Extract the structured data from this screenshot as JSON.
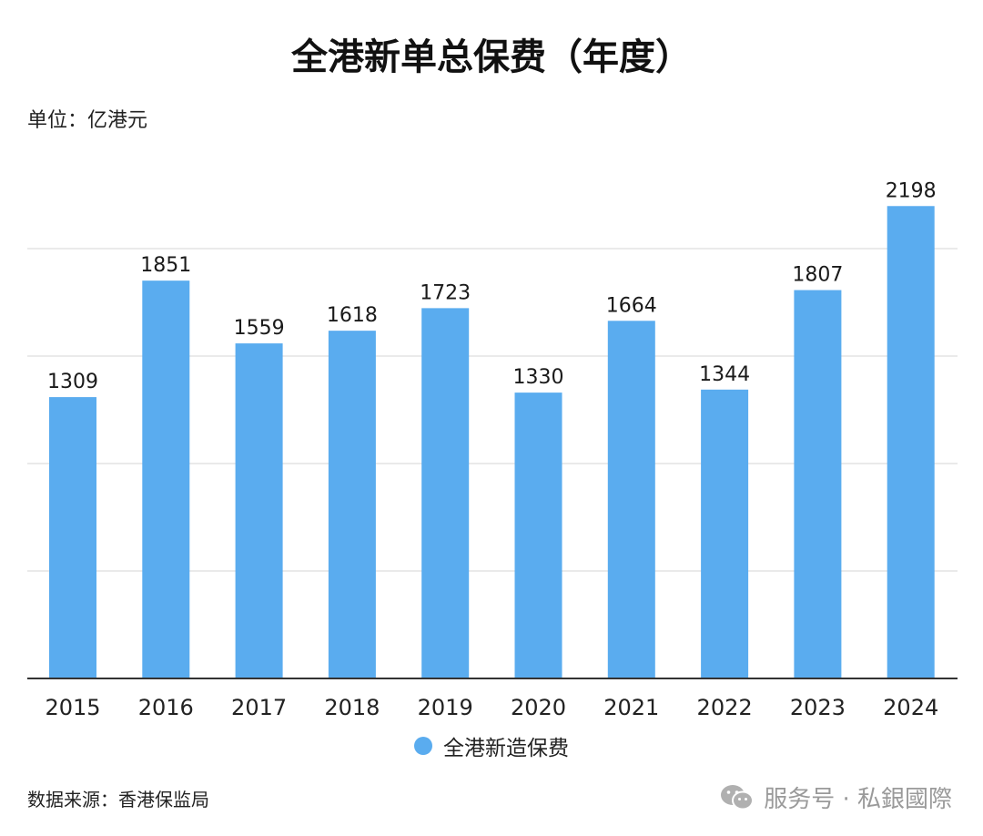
{
  "colors": {
    "bar": "#5aacef",
    "grid": "#e3e3e3",
    "axis": "#333333"
  },
  "chart_data": {
    "type": "bar",
    "title": "全港新单总保费（年度）",
    "unit": "单位：亿港元",
    "categories": [
      "2015",
      "2016",
      "2017",
      "2018",
      "2019",
      "2020",
      "2021",
      "2022",
      "2023",
      "2024"
    ],
    "series": [
      {
        "name": "全港新造保费",
        "values": [
          1309,
          1851,
          1559,
          1618,
          1723,
          1330,
          1664,
          1344,
          1807,
          2198
        ]
      }
    ],
    "ylim": [
      0,
      2500
    ],
    "grid": true,
    "show_y_ticks": false,
    "legend_position": "bottom"
  },
  "footer": {
    "source": "数据来源：香港保监局",
    "watermark": "服务号 · 私銀國際",
    "watermark_icon": "wechat-icon"
  }
}
